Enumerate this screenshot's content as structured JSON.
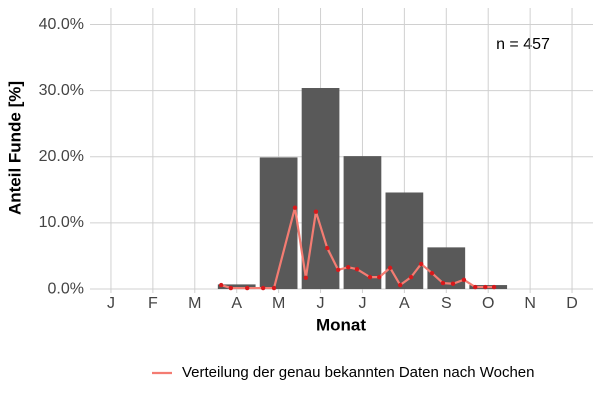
{
  "chart_data": {
    "type": "bar",
    "y_label": "Anteil Funde [%]",
    "x_label": "Monat",
    "annotation": "n = 457",
    "categories": [
      "J",
      "F",
      "M",
      "A",
      "M",
      "J",
      "J",
      "A",
      "S",
      "O",
      "N",
      "D"
    ],
    "values": [
      0,
      0,
      0,
      0.7,
      19.9,
      30.4,
      20.1,
      14.6,
      6.3,
      0.6,
      0,
      0
    ],
    "color": "#595959",
    "xlim": [
      0.5,
      12.5
    ],
    "ylim": [
      -0.6,
      42.5
    ],
    "yticks": [
      {
        "value": 0,
        "label": "0.0%"
      },
      {
        "value": 10,
        "label": "10.0%"
      },
      {
        "value": 20,
        "label": "20.0%"
      },
      {
        "value": 30,
        "label": "30.0%"
      },
      {
        "value": 40,
        "label": "40.0%"
      }
    ],
    "grid": true,
    "legend": "bottom",
    "overlay": {
      "type": "line",
      "name": "Verteilung der genau bekannten Daten nach Wochen",
      "color": "#f47c72",
      "marker_color": "#d7191c",
      "x": [
        3.63,
        3.86,
        4.25,
        4.63,
        4.89,
        5.39,
        5.65,
        5.89,
        6.16,
        6.42,
        6.66,
        6.87,
        7.18,
        7.4,
        7.66,
        7.9,
        8.16,
        8.4,
        8.66,
        8.92,
        9.16,
        9.42,
        9.69,
        9.93,
        10.14
      ],
      "values": [
        0.6,
        0.15,
        0.15,
        0.15,
        0.15,
        12.3,
        1.7,
        11.7,
        6.2,
        2.9,
        3.3,
        3.0,
        1.8,
        1.8,
        3.2,
        0.6,
        1.8,
        3.8,
        2.4,
        0.9,
        0.8,
        1.4,
        0.3,
        0.3,
        0.3
      ]
    }
  }
}
